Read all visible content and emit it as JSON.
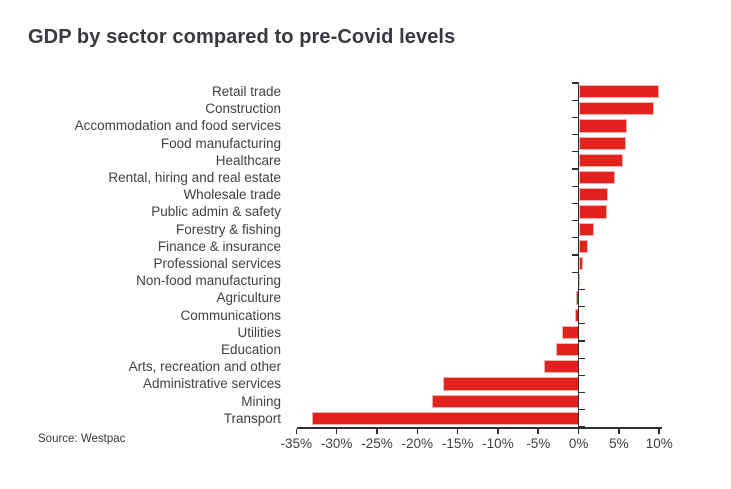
{
  "title": "GDP by sector compared to pre-Covid levels",
  "source": "Source: Westpac",
  "colors": {
    "bar_fill": "#e2231d",
    "bar_stroke": "#f2b0ae",
    "axis": "#2f2f2f",
    "title_text": "#38383f",
    "label_text": "#414141"
  },
  "chart_data": {
    "type": "bar",
    "orientation": "horizontal",
    "title": "GDP by sector compared to pre-Covid levels",
    "source": "Source: Westpac",
    "unit": "%",
    "grid": false,
    "xlim": [
      -35,
      10
    ],
    "x_ticks": [
      -35,
      -30,
      -25,
      -20,
      -15,
      -10,
      -5,
      0,
      5,
      10
    ],
    "x_tick_labels": [
      "-35%",
      "-30%",
      "-25%",
      "-20%",
      "-15%",
      "-10%",
      "-5%",
      "0%",
      "5%",
      "10%"
    ],
    "categories": [
      "Retail trade",
      "Construction",
      "Accommodation and food services",
      "Food manufacturing",
      "Healthcare",
      "Rental, hiring and real estate",
      "Wholesale trade",
      "Public admin & safety",
      "Forestry & fishing",
      "Finance & insurance",
      "Professional services",
      "Non-food manufacturing",
      "Agriculture",
      "Communications",
      "Utilities",
      "Education",
      "Arts, recreation and other",
      "Administrative services",
      "Mining",
      "Transport"
    ],
    "values": [
      9.9,
      9.2,
      5.9,
      5.8,
      5.4,
      4.4,
      3.5,
      3.4,
      1.8,
      1.1,
      0.5,
      -0.1,
      -0.3,
      -0.5,
      -2.1,
      -2.8,
      -4.3,
      -16.8,
      -18.2,
      -33.1
    ]
  }
}
